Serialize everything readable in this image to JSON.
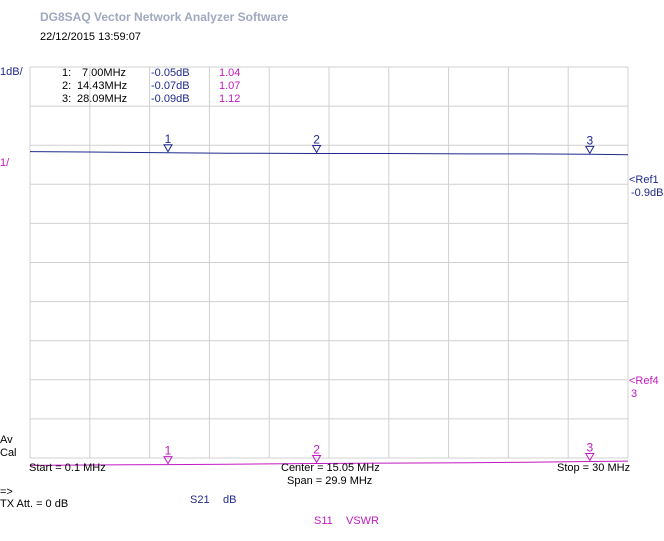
{
  "app_title": "DG8SAQ Vector Network Analyzer Software",
  "datetime": "22/12/2015   13:59:07",
  "left_labels": {
    "scale_s21": "1dB/",
    "scale_s11": "1/",
    "av": "Av",
    "cal": "Cal",
    "arrow": "=>",
    "tx_att": "TX Att.  = 0 dB"
  },
  "right_labels": {
    "ref1": "<Ref1",
    "ref1_value": "-0.9dB",
    "ref4": "<Ref4",
    "ref4_value": "3"
  },
  "bottom": {
    "start": "Start = 0.1 MHz",
    "center": "Center = 15.05 MHz",
    "span": "Span = 29.9 MHz",
    "stop": "Stop = 30 MHz"
  },
  "traces_legend": {
    "s21_name": "S21",
    "s21_unit": "dB",
    "s11_name": "S11",
    "s11_unit": "VSWR"
  },
  "markers": [
    {
      "index": "1:",
      "freq": "7.00MHz",
      "s21": "-0.05dB",
      "vswr": "1.04",
      "label": "1"
    },
    {
      "index": "2:",
      "freq": "14.43MHz",
      "s21": "-0.07dB",
      "vswr": "1.07",
      "label": "2"
    },
    {
      "index": "3:",
      "freq": "28.09MHz",
      "s21": "-0.09dB",
      "vswr": "1.12",
      "label": "3"
    }
  ],
  "colors": {
    "s21": "#1f2a8c",
    "s11": "#c21ac2",
    "grid": "#d0d0d0"
  },
  "chart_data": {
    "type": "line",
    "x_unit": "MHz",
    "xlim": [
      0.1,
      30
    ],
    "series": [
      {
        "name": "S21",
        "unit": "dB",
        "scale_per_div": 1,
        "ref_level": -0.9,
        "x": [
          0.1,
          3,
          7,
          10,
          14.43,
          18,
          22,
          25,
          28.09,
          30
        ],
        "values": [
          -0.02,
          -0.03,
          -0.05,
          -0.06,
          -0.07,
          -0.07,
          -0.08,
          -0.08,
          -0.09,
          -0.1
        ]
      },
      {
        "name": "S11",
        "unit": "VSWR",
        "scale_per_div": 1,
        "ref_level": 3,
        "x": [
          0.1,
          3,
          7,
          10,
          14.43,
          18,
          22,
          25,
          28.09,
          30
        ],
        "values": [
          1.02,
          1.03,
          1.04,
          1.05,
          1.07,
          1.08,
          1.09,
          1.1,
          1.12,
          1.13
        ]
      }
    ]
  }
}
